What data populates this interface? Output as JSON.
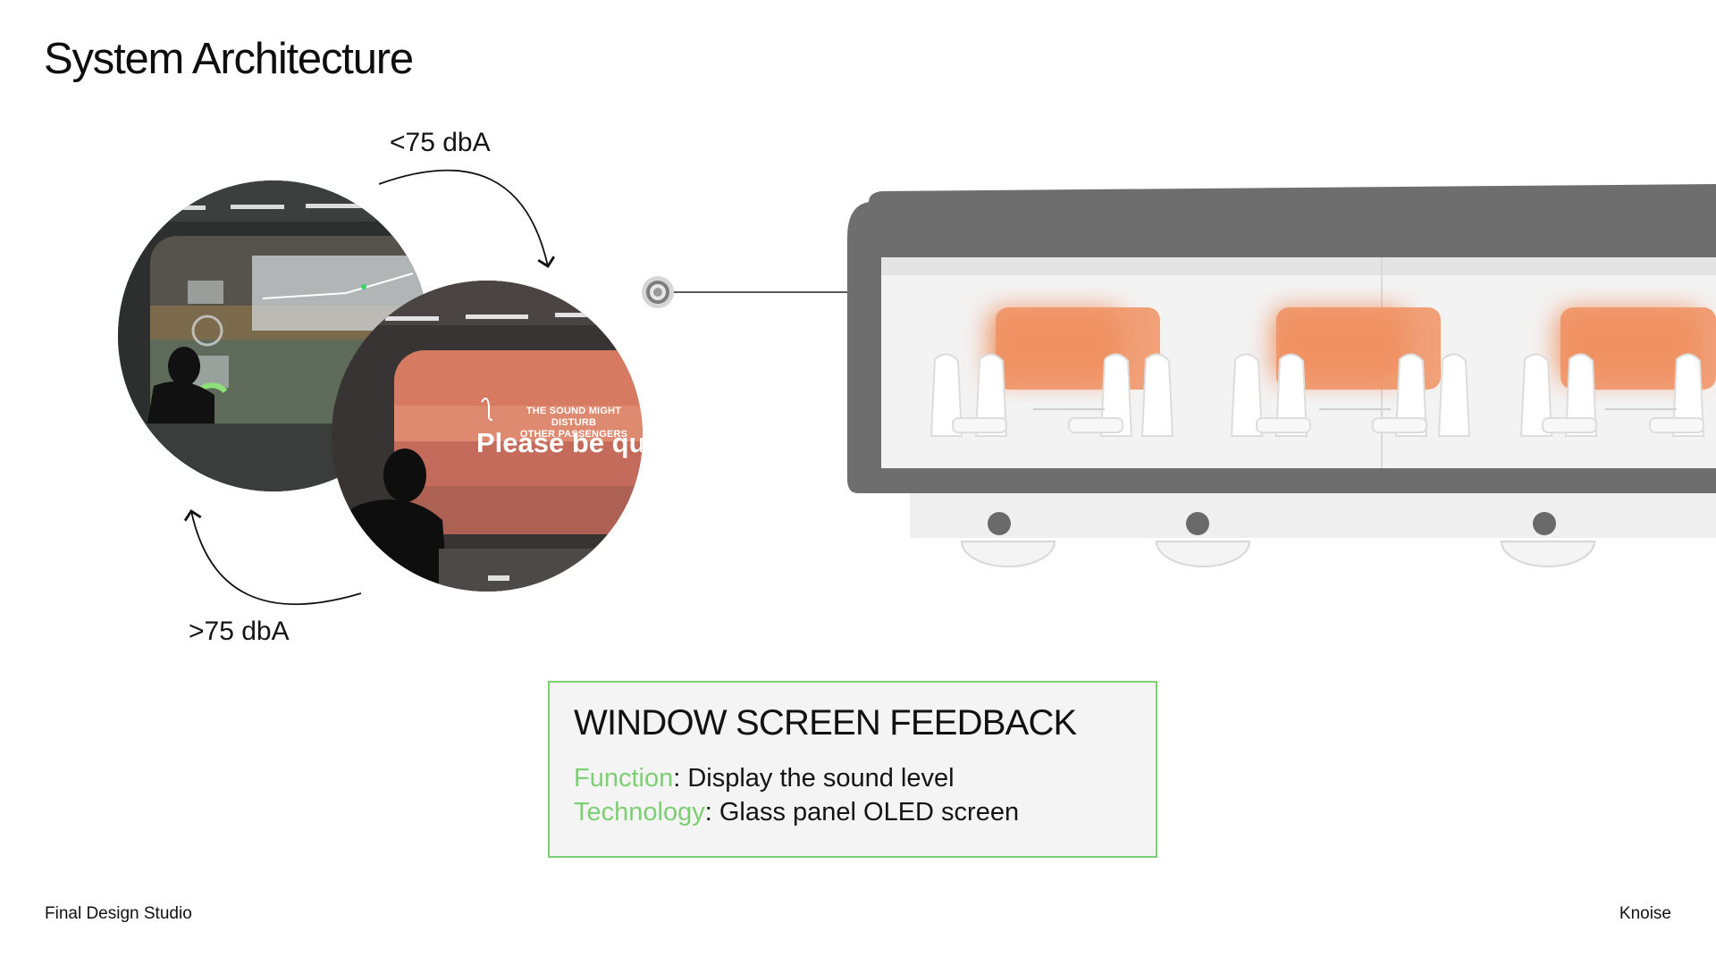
{
  "title": "System Architecture",
  "labels": {
    "low_db": "<75 dbA",
    "high_db": ">75 dbA"
  },
  "screen_overlay": {
    "line1": "THE SOUND MIGHT DISTURB",
    "line2": "OTHER PASSENGERS",
    "message": "Please be qui"
  },
  "feedback": {
    "heading": "WINDOW SCREEN FEEDBACK",
    "function_key": "Function",
    "function_value": ": Display the sound level",
    "technology_key": "Technology",
    "technology_value": ":  Glass panel OLED screen"
  },
  "footer": {
    "left": "Final Design Studio",
    "right": "Knoise"
  },
  "colors": {
    "accent_green": "#7ccf72",
    "train_body": "#6e6e6e",
    "window_glow": "#ef8a55",
    "screen_tint": "#d9735c"
  },
  "icons": [
    "curved-arrow-clockwise-icon",
    "curved-arrow-return-icon",
    "sensor-dot-icon"
  ]
}
